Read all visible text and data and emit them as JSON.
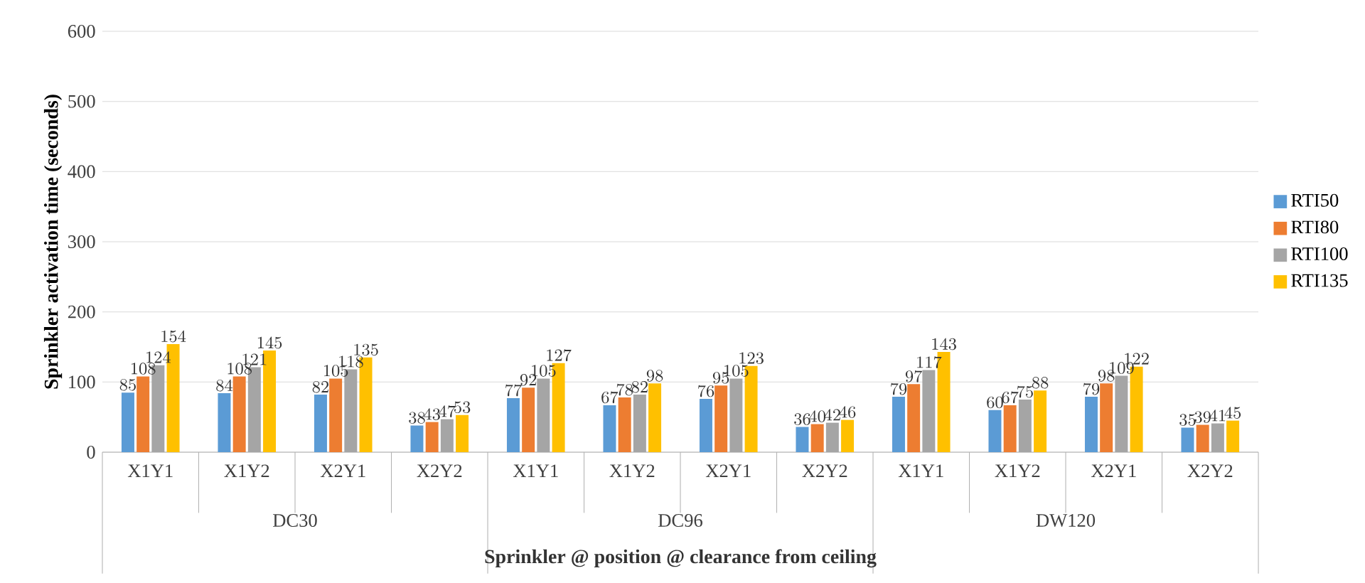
{
  "chart_data": {
    "type": "bar",
    "categories": [
      "X1Y1",
      "X1Y2",
      "X2Y1",
      "X2Y2",
      "X1Y1",
      "X1Y2",
      "X2Y1",
      "X2Y2",
      "X1Y1",
      "X1Y2",
      "X2Y1",
      "X2Y2"
    ],
    "series": [
      {
        "name": "RTI50",
        "color": "#5b9bd5",
        "values": [
          85,
          84,
          82,
          38,
          77,
          67,
          76,
          36,
          79,
          60,
          79,
          35
        ]
      },
      {
        "name": "RTI80",
        "color": "#ed7d31",
        "values": [
          108,
          108,
          105,
          43,
          92,
          78,
          95,
          40,
          97,
          67,
          98,
          39
        ]
      },
      {
        "name": "RTI100",
        "color": "#a5a5a5",
        "values": [
          124,
          121,
          118,
          47,
          105,
          82,
          105,
          42,
          117,
          75,
          109,
          41
        ]
      },
      {
        "name": "RTI135",
        "color": "#ffc000",
        "values": [
          154,
          145,
          135,
          53,
          127,
          98,
          123,
          46,
          143,
          88,
          122,
          45
        ]
      }
    ],
    "xlabel": "Sprinkler @ position @ clearance from ceiling",
    "ylabel": "Sprinkler activation time (seconds)",
    "annotations": [
      "DC30",
      "DC96",
      "DW120"
    ],
    "ylim": [
      0,
      600
    ],
    "yticks": [
      0,
      100,
      200,
      300,
      400,
      500,
      600
    ],
    "grid": "y",
    "legend": "right",
    "data_labels": true
  }
}
